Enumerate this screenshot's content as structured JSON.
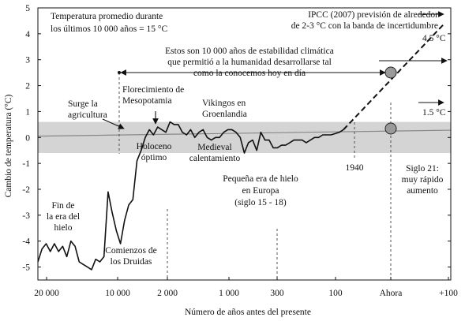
{
  "chart_data": {
    "type": "line",
    "xlabel": "Número de años antes del presente",
    "ylabel": "Cambio de temperatura (°C)",
    "ylim": [
      -5.5,
      5
    ],
    "y_ticks": [
      "-5",
      "-4",
      "-3",
      "-2",
      "-1",
      "0",
      "1",
      "2",
      "3",
      "4",
      "5"
    ],
    "x_ticks": [
      "20 000",
      "10 000",
      "2 000",
      "1 000",
      "300",
      "100",
      "Ahora",
      "+100"
    ],
    "band": {
      "from": -0.6,
      "to": 0.6,
      "color": "#d4d4d4"
    },
    "colors": {
      "line": "#111111",
      "marker": "#9a9a9a",
      "zero_line": "#888888"
    },
    "series": [
      {
        "values": [
          [
            0.0,
            -4.8
          ],
          [
            0.01,
            -4.3
          ],
          [
            0.02,
            -4.1
          ],
          [
            0.03,
            -4.4
          ],
          [
            0.04,
            -4.1
          ],
          [
            0.05,
            -4.4
          ],
          [
            0.06,
            -4.2
          ],
          [
            0.07,
            -4.6
          ],
          [
            0.08,
            -4.0
          ],
          [
            0.09,
            -4.2
          ],
          [
            0.1,
            -4.8
          ],
          [
            0.11,
            -4.9
          ],
          [
            0.12,
            -5.0
          ],
          [
            0.13,
            -5.1
          ],
          [
            0.14,
            -4.7
          ],
          [
            0.15,
            -4.8
          ],
          [
            0.16,
            -4.6
          ],
          [
            0.17,
            -2.1
          ],
          [
            0.18,
            -2.9
          ],
          [
            0.19,
            -3.6
          ],
          [
            0.2,
            -4.1
          ],
          [
            0.21,
            -3.2
          ],
          [
            0.22,
            -2.6
          ],
          [
            0.23,
            -2.4
          ],
          [
            0.24,
            -0.9
          ],
          [
            0.25,
            -0.5
          ],
          [
            0.26,
            0.0
          ],
          [
            0.27,
            0.3
          ],
          [
            0.28,
            0.1
          ],
          [
            0.29,
            0.4
          ],
          [
            0.3,
            0.3
          ],
          [
            0.31,
            0.2
          ],
          [
            0.32,
            0.6
          ],
          [
            0.33,
            0.5
          ],
          [
            0.34,
            0.5
          ],
          [
            0.35,
            0.2
          ],
          [
            0.36,
            0.1
          ],
          [
            0.37,
            0.3
          ],
          [
            0.38,
            0.0
          ],
          [
            0.39,
            0.2
          ],
          [
            0.4,
            0.3
          ],
          [
            0.41,
            0.0
          ],
          [
            0.42,
            -0.1
          ],
          [
            0.43,
            0.0
          ],
          [
            0.44,
            0.0
          ],
          [
            0.45,
            0.2
          ],
          [
            0.46,
            0.3
          ],
          [
            0.47,
            0.3
          ],
          [
            0.48,
            0.2
          ],
          [
            0.49,
            0.0
          ],
          [
            0.5,
            -0.6
          ],
          [
            0.51,
            -0.2
          ],
          [
            0.52,
            -0.1
          ],
          [
            0.53,
            -0.5
          ],
          [
            0.54,
            0.2
          ],
          [
            0.55,
            -0.1
          ],
          [
            0.56,
            -0.1
          ],
          [
            0.57,
            -0.4
          ],
          [
            0.58,
            -0.4
          ],
          [
            0.59,
            -0.3
          ],
          [
            0.6,
            -0.3
          ],
          [
            0.61,
            -0.2
          ],
          [
            0.62,
            -0.1
          ],
          [
            0.63,
            -0.1
          ],
          [
            0.64,
            -0.1
          ],
          [
            0.65,
            -0.2
          ],
          [
            0.66,
            -0.1
          ],
          [
            0.67,
            0.0
          ],
          [
            0.68,
            0.0
          ],
          [
            0.69,
            0.1
          ],
          [
            0.7,
            0.1
          ],
          [
            0.71,
            0.1
          ],
          [
            0.72,
            0.15
          ],
          [
            0.73,
            0.2
          ],
          [
            0.74,
            0.3
          ]
        ]
      }
    ],
    "projections": [
      {
        "label": "1.5 °C",
        "to_y": 0.6
      },
      {
        "label": "4.5 °C",
        "to_y": 4.4
      }
    ],
    "annotations": {
      "title_left": [
        "Temperatura promedio durante",
        "los últimos 10 000 años = 15 °C"
      ],
      "ipcc": [
        "IPCC (2007) previsión de alrededor",
        "de 2-3 °C con la banda de incertidumbre"
      ],
      "estos": [
        "Estos son 10 000 años de estabilidad climática",
        "que permitió a la humanidad desarrollarse tal",
        "como la conocemos hoy en día"
      ],
      "surge": [
        "Surge la",
        "agricultura"
      ],
      "flor": [
        "Florecimiento de",
        "Mesopotamia"
      ],
      "vikingos": [
        "Vikingos en",
        "Groenlandia"
      ],
      "holoceno": [
        "Holoceno",
        "óptimo"
      ],
      "medieval": [
        "Medieval",
        "calentamiento"
      ],
      "pequena": [
        "Pequeña era de hielo",
        "en Europa",
        "(siglo 15 - 18)"
      ],
      "y1940": "1940",
      "siglo": [
        "Siglo 21:",
        "muy rápido",
        "aumento"
      ],
      "fin": [
        "Fin de",
        "la era del",
        "hielo"
      ],
      "druidas": [
        "Comienzos de",
        "los Druidas"
      ],
      "p45": "4.5 °C",
      "p15": "1.5 °C"
    }
  }
}
